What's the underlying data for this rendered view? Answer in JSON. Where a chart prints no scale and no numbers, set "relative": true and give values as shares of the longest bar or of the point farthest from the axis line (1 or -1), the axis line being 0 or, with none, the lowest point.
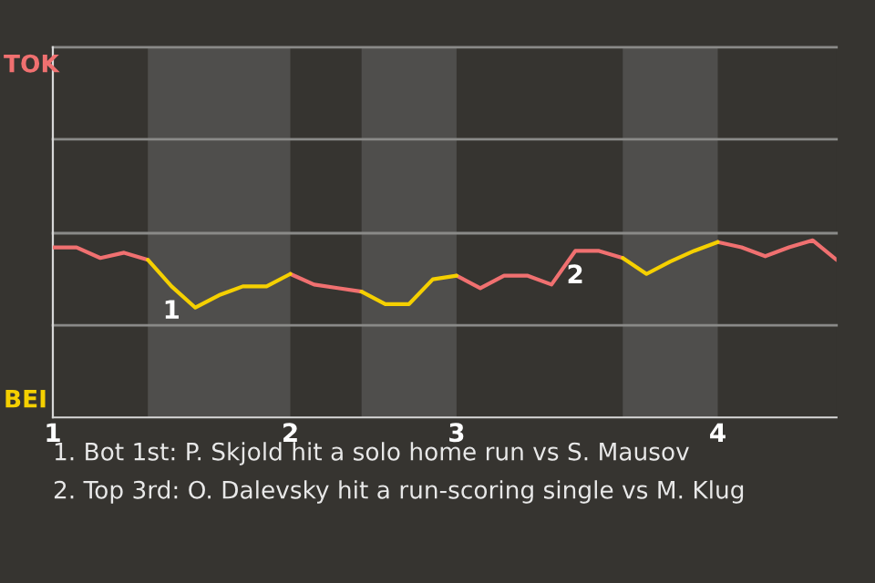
{
  "chart_data": {
    "type": "line",
    "relative": true,
    "categories": [
      "1",
      null,
      null,
      null,
      null,
      null,
      null,
      null,
      null,
      null,
      "2",
      null,
      null,
      null,
      null,
      null,
      null,
      "3",
      null,
      null,
      null,
      null,
      null,
      null,
      null,
      null,
      null,
      null,
      "4",
      null,
      null,
      null,
      null,
      null
    ],
    "series": [
      {
        "color": "#f07070",
        "values": [
          0.96,
          0.96,
          0.9,
          0.93,
          0.89,
          null,
          null,
          null,
          null,
          null,
          0.81,
          0.75,
          0.73,
          0.71,
          null,
          null,
          null,
          0.8,
          0.73,
          0.8,
          0.8,
          0.75,
          0.94,
          0.94,
          0.9,
          null,
          null,
          null,
          0.99,
          0.96,
          0.91,
          0.96,
          1.0,
          0.89
        ]
      },
      {
        "color": "#f5d000",
        "values": [
          null,
          null,
          null,
          null,
          0.89,
          0.74,
          0.62,
          0.69,
          0.74,
          0.74,
          0.81,
          null,
          null,
          0.71,
          0.64,
          0.64,
          0.78,
          0.8,
          null,
          null,
          null,
          null,
          null,
          null,
          0.9,
          0.81,
          0.88,
          0.94,
          0.99,
          null,
          null,
          null,
          null,
          null
        ]
      }
    ],
    "ref_lines": [
      {
        "axis": "y",
        "value": 0.52,
        "color": "#8a8a88"
      },
      {
        "axis": "y",
        "value": 1.04,
        "color": "#8a8a88"
      },
      {
        "axis": "y",
        "value": 1.57,
        "color": "#8a8a88"
      },
      {
        "axis": "y",
        "value": 2.09,
        "color": "#8a8a88"
      }
    ],
    "annotations": [
      "TOK",
      "BEI",
      {
        "text": "1",
        "y": 0.74
      },
      {
        "text": "2",
        "y": 0.94
      },
      "1. Bot 1st: P. Skjold hit a solo home run vs S. Mausov",
      "2. Top 3rd: O. Dalevsky hit a run-scoring single vs M. Klug"
    ]
  }
}
